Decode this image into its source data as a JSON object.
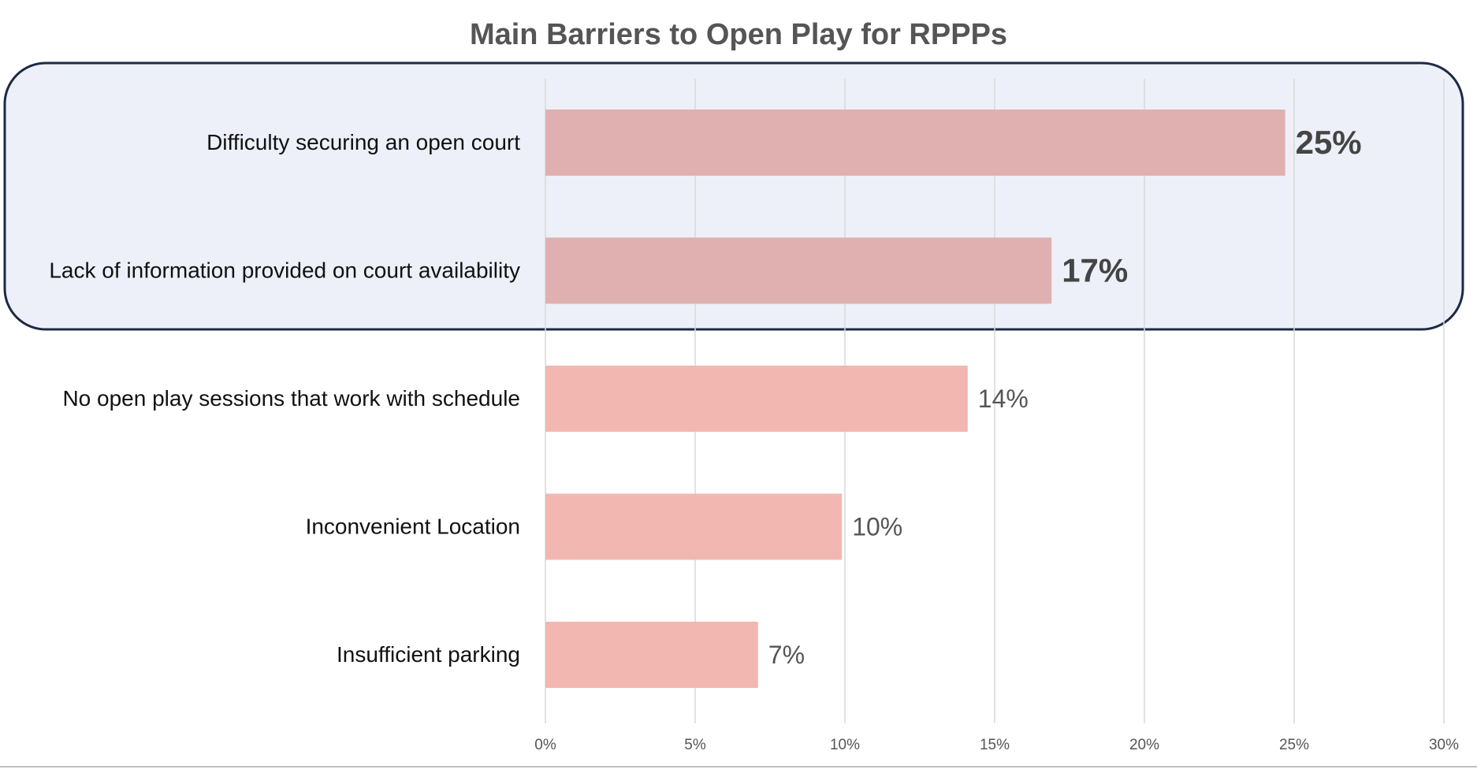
{
  "chart_data": {
    "type": "bar",
    "orientation": "horizontal",
    "title": "Main Barriers to Open Play for RPPPs",
    "xlabel": "",
    "ylabel": "",
    "xlim": [
      0,
      30
    ],
    "grid": true,
    "legend": "none",
    "categories": [
      "Difficulty securing an open court",
      "Lack of information provided on court availability",
      "No open play sessions that work with schedule",
      "Inconvenient Location",
      "Insufficient parking"
    ],
    "values": [
      24.7,
      16.9,
      14.1,
      9.9,
      7.1
    ],
    "data_labels": [
      "25%",
      "17%",
      "14%",
      "10%",
      "7%"
    ],
    "x_ticks": [
      0,
      5,
      10,
      15,
      20,
      25,
      30
    ],
    "x_tick_labels": [
      "0%",
      "5%",
      "10%",
      "15%",
      "20%",
      "25%",
      "30%"
    ],
    "highlighted_categories": [
      0,
      1
    ],
    "colors": {
      "bar_highlight": "#e0b0b1",
      "bar_default": "#f2b7b1",
      "highlight_fill": "#edf0f8",
      "highlight_stroke": "#1c2a44",
      "grid": "#d9d9d9",
      "title": "#555555",
      "category_text": "#111111",
      "label_highlight": "#444444",
      "label_default": "#555555",
      "tick_text": "#555555"
    }
  }
}
